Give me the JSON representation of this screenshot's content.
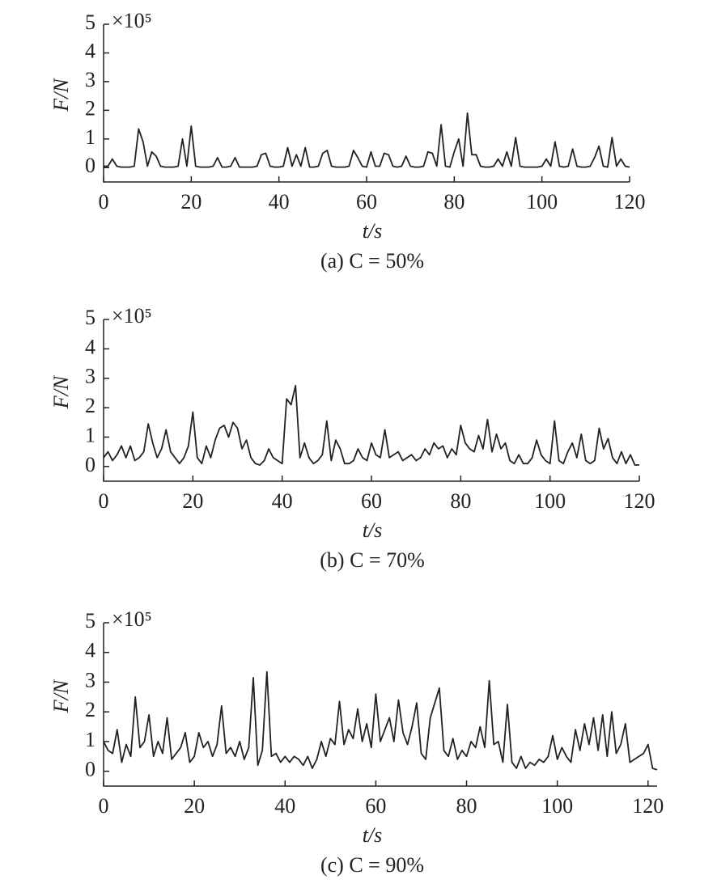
{
  "chart_data": [
    {
      "type": "line",
      "caption": "(a) C = 50%",
      "xlabel": "t/s",
      "ylabel": "F/N",
      "y_multiplier": "×10⁵",
      "xlim": [
        0,
        120
      ],
      "ylim": [
        -0.5,
        5
      ],
      "xticks": [
        0,
        20,
        40,
        60,
        80,
        100,
        120
      ],
      "yticks": [
        0,
        1,
        2,
        3,
        4,
        5
      ],
      "x": [
        0,
        1,
        2,
        3,
        4,
        5,
        6,
        7,
        8,
        9,
        10,
        11,
        12,
        13,
        14,
        15,
        16,
        17,
        18,
        19,
        20,
        21,
        22,
        23,
        24,
        25,
        26,
        27,
        28,
        29,
        30,
        31,
        32,
        33,
        34,
        35,
        36,
        37,
        38,
        39,
        40,
        41,
        42,
        43,
        44,
        45,
        46,
        47,
        48,
        49,
        50,
        51,
        52,
        53,
        54,
        55,
        56,
        57,
        58,
        59,
        60,
        61,
        62,
        63,
        64,
        65,
        66,
        67,
        68,
        69,
        70,
        71,
        72,
        73,
        74,
        75,
        76,
        77,
        78,
        79,
        80,
        81,
        82,
        83,
        84,
        85,
        86,
        87,
        88,
        89,
        90,
        91,
        92,
        93,
        94,
        95,
        96,
        97,
        98,
        99,
        100,
        101,
        102,
        103,
        104,
        105,
        106,
        107,
        108,
        109,
        110,
        111,
        112,
        113,
        114,
        115,
        116,
        117,
        118,
        119,
        120
      ],
      "series": [
        {
          "color": "#222222",
          "values": [
            0.05,
            0.05,
            0.3,
            0.05,
            0.02,
            0.02,
            0.02,
            0.05,
            1.35,
            0.9,
            0.05,
            0.55,
            0.4,
            0.05,
            0.02,
            0.02,
            0.02,
            0.05,
            1.0,
            0.05,
            1.45,
            0.05,
            0.02,
            0.02,
            0.02,
            0.05,
            0.35,
            0.02,
            0.02,
            0.05,
            0.35,
            0.02,
            0.02,
            0.02,
            0.02,
            0.05,
            0.45,
            0.5,
            0.05,
            0.02,
            0.02,
            0.05,
            0.7,
            0.05,
            0.45,
            0.05,
            0.7,
            0.02,
            0.02,
            0.05,
            0.5,
            0.6,
            0.05,
            0.02,
            0.02,
            0.02,
            0.05,
            0.6,
            0.35,
            0.05,
            0.02,
            0.55,
            0.05,
            0.05,
            0.5,
            0.45,
            0.05,
            0.02,
            0.05,
            0.4,
            0.05,
            0.02,
            0.02,
            0.05,
            0.55,
            0.5,
            0.05,
            1.5,
            0.05,
            0.02,
            0.55,
            1.0,
            0.05,
            1.9,
            0.45,
            0.45,
            0.05,
            0.02,
            0.02,
            0.05,
            0.3,
            0.05,
            0.55,
            0.05,
            1.05,
            0.05,
            0.02,
            0.02,
            0.02,
            0.02,
            0.05,
            0.3,
            0.05,
            0.9,
            0.05,
            0.02,
            0.05,
            0.65,
            0.05,
            0.02,
            0.02,
            0.05,
            0.35,
            0.75,
            0.05,
            0.02,
            1.05,
            0.05,
            0.3,
            0.05,
            0.02
          ]
        }
      ]
    },
    {
      "type": "line",
      "caption": "(b) C = 70%",
      "xlabel": "t/s",
      "ylabel": "F/N",
      "y_multiplier": "×10⁵",
      "xlim": [
        0,
        120
      ],
      "ylim": [
        -0.5,
        5
      ],
      "xticks": [
        0,
        20,
        40,
        60,
        80,
        100,
        120
      ],
      "yticks": [
        0,
        1,
        2,
        3,
        4,
        5
      ],
      "x": [
        0,
        1,
        2,
        3,
        4,
        5,
        6,
        7,
        8,
        9,
        10,
        11,
        12,
        13,
        14,
        15,
        16,
        17,
        18,
        19,
        20,
        21,
        22,
        23,
        24,
        25,
        26,
        27,
        28,
        29,
        30,
        31,
        32,
        33,
        34,
        35,
        36,
        37,
        38,
        39,
        40,
        41,
        42,
        43,
        44,
        45,
        46,
        47,
        48,
        49,
        50,
        51,
        52,
        53,
        54,
        55,
        56,
        57,
        58,
        59,
        60,
        61,
        62,
        63,
        64,
        65,
        66,
        67,
        68,
        69,
        70,
        71,
        72,
        73,
        74,
        75,
        76,
        77,
        78,
        79,
        80,
        81,
        82,
        83,
        84,
        85,
        86,
        87,
        88,
        89,
        90,
        91,
        92,
        93,
        94,
        95,
        96,
        97,
        98,
        99,
        100,
        101,
        102,
        103,
        104,
        105,
        106,
        107,
        108,
        109,
        110,
        111,
        112,
        113,
        114,
        115,
        116,
        117,
        118,
        119,
        120
      ],
      "series": [
        {
          "color": "#222222",
          "values": [
            0.3,
            0.5,
            0.2,
            0.4,
            0.7,
            0.3,
            0.7,
            0.2,
            0.3,
            0.5,
            1.45,
            0.8,
            0.3,
            0.6,
            1.25,
            0.5,
            0.3,
            0.1,
            0.3,
            0.7,
            1.85,
            0.3,
            0.1,
            0.7,
            0.3,
            0.9,
            1.3,
            1.4,
            1.0,
            1.5,
            1.3,
            0.6,
            0.9,
            0.3,
            0.1,
            0.05,
            0.2,
            0.6,
            0.3,
            0.2,
            0.1,
            2.3,
            2.1,
            2.75,
            0.3,
            0.8,
            0.3,
            0.1,
            0.2,
            0.4,
            1.55,
            0.2,
            0.9,
            0.6,
            0.1,
            0.1,
            0.2,
            0.6,
            0.3,
            0.2,
            0.8,
            0.4,
            0.3,
            1.25,
            0.3,
            0.4,
            0.5,
            0.2,
            0.3,
            0.4,
            0.2,
            0.3,
            0.6,
            0.4,
            0.8,
            0.6,
            0.7,
            0.3,
            0.6,
            0.4,
            1.4,
            0.8,
            0.6,
            0.5,
            1.05,
            0.6,
            1.6,
            0.5,
            1.1,
            0.6,
            0.8,
            0.2,
            0.1,
            0.4,
            0.1,
            0.1,
            0.3,
            0.9,
            0.4,
            0.2,
            0.1,
            1.55,
            0.2,
            0.1,
            0.5,
            0.8,
            0.3,
            1.1,
            0.2,
            0.1,
            0.2,
            1.3,
            0.6,
            0.95,
            0.3,
            0.1,
            0.5,
            0.1,
            0.4,
            0.05,
            0.05
          ]
        }
      ]
    },
    {
      "type": "line",
      "caption": "(c) C = 90%",
      "xlabel": "t/s",
      "ylabel": "F/N",
      "y_multiplier": "×10⁵",
      "xlim": [
        0,
        122
      ],
      "ylim": [
        -0.5,
        5
      ],
      "xticks": [
        0,
        20,
        40,
        60,
        80,
        100,
        120
      ],
      "yticks": [
        0,
        1,
        2,
        3,
        4,
        5
      ],
      "x": [
        0,
        1,
        2,
        3,
        4,
        5,
        6,
        7,
        8,
        9,
        10,
        11,
        12,
        13,
        14,
        15,
        16,
        17,
        18,
        19,
        20,
        21,
        22,
        23,
        24,
        25,
        26,
        27,
        28,
        29,
        30,
        31,
        32,
        33,
        34,
        35,
        36,
        37,
        38,
        39,
        40,
        41,
        42,
        43,
        44,
        45,
        46,
        47,
        48,
        49,
        50,
        51,
        52,
        53,
        54,
        55,
        56,
        57,
        58,
        59,
        60,
        61,
        62,
        63,
        64,
        65,
        66,
        67,
        68,
        69,
        70,
        71,
        72,
        73,
        74,
        75,
        76,
        77,
        78,
        79,
        80,
        81,
        82,
        83,
        84,
        85,
        86,
        87,
        88,
        89,
        90,
        91,
        92,
        93,
        94,
        95,
        96,
        97,
        98,
        99,
        100,
        101,
        102,
        103,
        104,
        105,
        106,
        107,
        108,
        109,
        110,
        111,
        112,
        113,
        114,
        115,
        116,
        117,
        118,
        119,
        120,
        121,
        122
      ],
      "series": [
        {
          "color": "#222222",
          "values": [
            1.0,
            0.7,
            0.6,
            1.4,
            0.3,
            0.9,
            0.5,
            2.5,
            0.8,
            1.0,
            1.9,
            0.5,
            1.0,
            0.6,
            1.8,
            0.4,
            0.6,
            0.8,
            1.3,
            0.3,
            0.5,
            1.3,
            0.8,
            1.0,
            0.5,
            0.9,
            2.2,
            0.6,
            0.8,
            0.5,
            1.0,
            0.4,
            0.8,
            3.15,
            0.2,
            0.7,
            3.35,
            0.5,
            0.6,
            0.3,
            0.5,
            0.3,
            0.5,
            0.4,
            0.2,
            0.5,
            0.1,
            0.4,
            1.0,
            0.5,
            1.1,
            0.9,
            2.35,
            0.9,
            1.4,
            1.1,
            2.1,
            1.0,
            1.6,
            0.8,
            2.6,
            1.0,
            1.4,
            1.8,
            1.0,
            2.4,
            1.3,
            0.9,
            1.5,
            2.3,
            0.6,
            0.4,
            1.8,
            2.3,
            2.8,
            0.7,
            0.5,
            1.1,
            0.4,
            0.7,
            0.5,
            1.0,
            0.8,
            1.5,
            0.8,
            3.05,
            0.9,
            1.0,
            0.3,
            2.25,
            0.3,
            0.1,
            0.5,
            0.1,
            0.3,
            0.2,
            0.4,
            0.3,
            0.5,
            1.2,
            0.4,
            0.8,
            0.5,
            0.3,
            1.4,
            0.7,
            1.6,
            0.9,
            1.8,
            0.7,
            1.9,
            0.5,
            2.0,
            0.6,
            0.9,
            1.6,
            0.3,
            0.4,
            0.5,
            0.6,
            0.9,
            0.1,
            0.05
          ]
        }
      ]
    }
  ]
}
